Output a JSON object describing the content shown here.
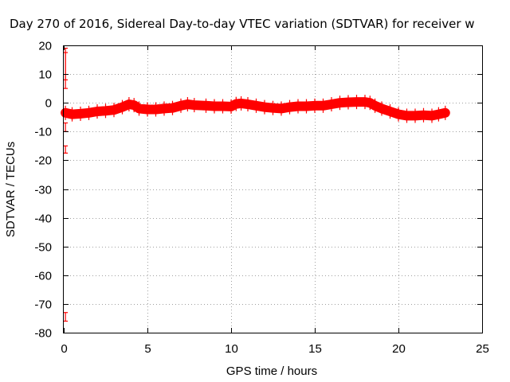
{
  "chart_data": {
    "type": "line",
    "title": "Day 270 of 2016, Sidereal Day-to-day VTEC variation (SDTVAR) for receiver w",
    "xlabel": "GPS time / hours",
    "ylabel": "SDTVAR / TECUs",
    "xlim": [
      0,
      25
    ],
    "ylim": [
      -80,
      20
    ],
    "xticks": [
      "0",
      "5",
      "10",
      "15",
      "20",
      "25"
    ],
    "yticks": [
      "20",
      "10",
      "0",
      "-10",
      "-20",
      "-30",
      "-40",
      "-50",
      "-60",
      "-70",
      "-80"
    ],
    "grid": true,
    "series": [
      {
        "color": "#ff0000",
        "x": [
          0.1,
          0.5,
          1.0,
          1.5,
          2.0,
          2.5,
          3.0,
          3.5,
          3.9,
          4.2,
          4.5,
          5.0,
          5.5,
          6.0,
          6.5,
          7.0,
          7.4,
          7.8,
          8.5,
          9.0,
          9.5,
          10.0,
          10.3,
          10.6,
          11.0,
          11.5,
          12.0,
          12.5,
          13.0,
          13.5,
          14.0,
          14.5,
          15.0,
          15.5,
          16.0,
          16.5,
          17.0,
          17.5,
          18.0,
          18.3,
          18.6,
          19.0,
          19.5,
          20.0,
          20.5,
          21.0,
          21.5,
          22.0,
          22.4,
          22.8
        ],
        "y": [
          -3.5,
          -4.0,
          -3.8,
          -3.5,
          -3.0,
          -2.8,
          -2.5,
          -1.5,
          -0.5,
          -0.8,
          -2.0,
          -2.3,
          -2.3,
          -2.0,
          -1.8,
          -1.0,
          -0.5,
          -0.8,
          -1.0,
          -1.2,
          -1.2,
          -1.3,
          -0.4,
          -0.2,
          -0.5,
          -1.0,
          -1.5,
          -1.8,
          -2.0,
          -1.5,
          -1.2,
          -1.2,
          -1.0,
          -1.0,
          -0.5,
          0.0,
          0.2,
          0.3,
          0.3,
          0.0,
          -1.0,
          -2.0,
          -3.0,
          -4.0,
          -4.5,
          -4.5,
          -4.3,
          -4.5,
          -4.0,
          -3.5
        ]
      }
    ],
    "error_bars": {
      "color": "#ff0000",
      "x": [
        0.1,
        0.1,
        0.1,
        0.1,
        0.1
      ],
      "low": [
        8,
        5,
        -10,
        -17.5,
        -76
      ],
      "high": [
        19,
        17.5,
        -7,
        -15,
        -73
      ]
    }
  }
}
